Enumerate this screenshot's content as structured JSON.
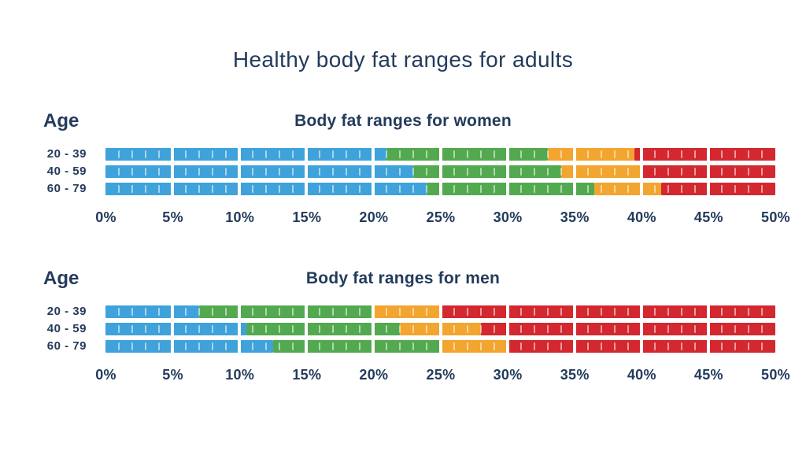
{
  "page": {
    "title": "Healthy body fat ranges for adults",
    "background_color": "#ffffff",
    "text_color": "#233B5C"
  },
  "chart_data": {
    "type": "stacked_bar",
    "orientation": "horizontal",
    "title": "Healthy body fat ranges for adults",
    "x_unit": "%",
    "xlim": [
      0,
      50
    ],
    "x_tick_step": 5,
    "x_tick_labels": [
      "0%",
      "5%",
      "10%",
      "15%",
      "20%",
      "25%",
      "30%",
      "35%",
      "40%",
      "45%",
      "50%"
    ],
    "minor_tick_step": 1,
    "grid": false,
    "legend": "none",
    "band_colors": {
      "blue": "#3FA2DB",
      "green": "#53A94F",
      "orange": "#F2A52F",
      "red": "#D3282F"
    },
    "charts": [
      {
        "id": "women",
        "age_header": "Age",
        "title": "Body fat ranges for women",
        "categories": [
          "20 - 39",
          "40 - 59",
          "60 - 79"
        ],
        "rows": [
          {
            "age": "20 - 39",
            "segments": [
              {
                "color": "blue",
                "from": 0,
                "to": 21
              },
              {
                "color": "green",
                "from": 21,
                "to": 33
              },
              {
                "color": "orange",
                "from": 33,
                "to": 39.5
              },
              {
                "color": "red",
                "from": 39.5,
                "to": 50
              }
            ]
          },
          {
            "age": "40 - 59",
            "segments": [
              {
                "color": "blue",
                "from": 0,
                "to": 23
              },
              {
                "color": "green",
                "from": 23,
                "to": 34
              },
              {
                "color": "orange",
                "from": 34,
                "to": 40
              },
              {
                "color": "red",
                "from": 40,
                "to": 50
              }
            ]
          },
          {
            "age": "60 - 79",
            "segments": [
              {
                "color": "blue",
                "from": 0,
                "to": 24
              },
              {
                "color": "green",
                "from": 24,
                "to": 36.5
              },
              {
                "color": "orange",
                "from": 36.5,
                "to": 41.5
              },
              {
                "color": "red",
                "from": 41.5,
                "to": 50
              }
            ]
          }
        ]
      },
      {
        "id": "men",
        "age_header": "Age",
        "title": "Body fat ranges for men",
        "categories": [
          "20 - 39",
          "40 - 59",
          "60 - 79"
        ],
        "rows": [
          {
            "age": "20 - 39",
            "segments": [
              {
                "color": "blue",
                "from": 0,
                "to": 7
              },
              {
                "color": "green",
                "from": 7,
                "to": 20
              },
              {
                "color": "orange",
                "from": 20,
                "to": 25
              },
              {
                "color": "red",
                "from": 25,
                "to": 50
              }
            ]
          },
          {
            "age": "40 - 59",
            "segments": [
              {
                "color": "blue",
                "from": 0,
                "to": 10.5
              },
              {
                "color": "green",
                "from": 10.5,
                "to": 22
              },
              {
                "color": "orange",
                "from": 22,
                "to": 28
              },
              {
                "color": "red",
                "from": 28,
                "to": 50
              }
            ]
          },
          {
            "age": "60 - 79",
            "segments": [
              {
                "color": "blue",
                "from": 0,
                "to": 12.5
              },
              {
                "color": "green",
                "from": 12.5,
                "to": 25
              },
              {
                "color": "orange",
                "from": 25,
                "to": 30
              },
              {
                "color": "red",
                "from": 30,
                "to": 50
              }
            ]
          }
        ]
      }
    ]
  }
}
